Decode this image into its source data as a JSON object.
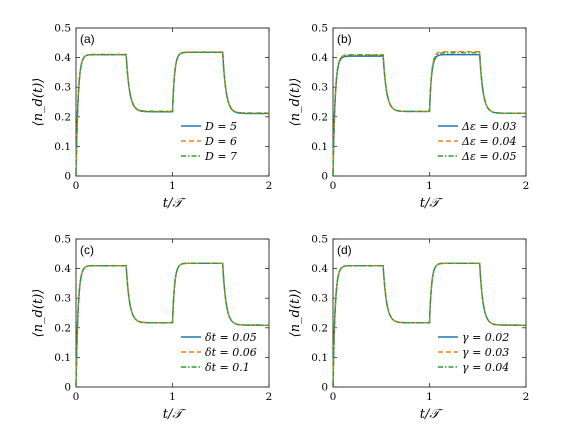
{
  "chart_data": [
    {
      "type": "line",
      "panel_label": "(a)",
      "xlabel": "t/𝒯",
      "ylabel": "⟨n_d(t)⟩",
      "xlim": [
        0,
        2
      ],
      "ylim": [
        0,
        0.5
      ],
      "xticks": [
        "0",
        "1",
        "2"
      ],
      "yticks": [
        "0",
        "0.1",
        "0.2",
        "0.3",
        "0.4",
        "0.5"
      ],
      "legend_position": "lower-right",
      "series": [
        {
          "name": "D = 5",
          "color": "#1f77b4",
          "style": "solid",
          "plateau1": 0.41,
          "trough": 0.217,
          "plateau2": 0.418,
          "tail": 0.211
        },
        {
          "name": "D = 6",
          "color": "#ff7f0e",
          "style": "dashed",
          "plateau1": 0.411,
          "trough": 0.219,
          "plateau2": 0.419,
          "tail": 0.213
        },
        {
          "name": "D = 7",
          "color": "#2ca02c",
          "style": "dashdot",
          "plateau1": 0.41,
          "trough": 0.218,
          "plateau2": 0.418,
          "tail": 0.212
        }
      ]
    },
    {
      "type": "line",
      "panel_label": "(b)",
      "xlabel": "t/𝒯",
      "ylabel": "⟨n_d(t)⟩",
      "xlim": [
        0,
        2
      ],
      "ylim": [
        0,
        0.5
      ],
      "xticks": [
        "0",
        "1",
        "2"
      ],
      "yticks": [
        "0",
        "0.1",
        "0.2",
        "0.3",
        "0.4",
        "0.5"
      ],
      "legend_position": "lower-right",
      "series": [
        {
          "name": "Δε = 0.03",
          "color": "#1f77b4",
          "style": "solid",
          "plateau1": 0.405,
          "trough": 0.218,
          "plateau2": 0.41,
          "tail": 0.212
        },
        {
          "name": "Δε = 0.04",
          "color": "#ff7f0e",
          "style": "dashed",
          "plateau1": 0.41,
          "trough": 0.218,
          "plateau2": 0.42,
          "tail": 0.212
        },
        {
          "name": "Δε = 0.05",
          "color": "#2ca02c",
          "style": "dashdot",
          "plateau1": 0.408,
          "trough": 0.218,
          "plateau2": 0.416,
          "tail": 0.212
        }
      ]
    },
    {
      "type": "line",
      "panel_label": "(c)",
      "xlabel": "t/𝒯",
      "ylabel": "⟨n_d(t)⟩",
      "xlim": [
        0,
        2
      ],
      "ylim": [
        0,
        0.5
      ],
      "xticks": [
        "0",
        "1",
        "2"
      ],
      "yticks": [
        "0",
        "0.1",
        "0.2",
        "0.3",
        "0.4",
        "0.5"
      ],
      "legend_position": "lower-right",
      "series": [
        {
          "name": "δt = 0.05",
          "color": "#1f77b4",
          "style": "solid",
          "plateau1": 0.41,
          "trough": 0.217,
          "plateau2": 0.418,
          "tail": 0.209
        },
        {
          "name": "δt = 0.06",
          "color": "#ff7f0e",
          "style": "dashed",
          "plateau1": 0.41,
          "trough": 0.217,
          "plateau2": 0.418,
          "tail": 0.209
        },
        {
          "name": "δt = 0.1",
          "color": "#2ca02c",
          "style": "dashdot",
          "plateau1": 0.41,
          "trough": 0.217,
          "plateau2": 0.418,
          "tail": 0.209
        }
      ]
    },
    {
      "type": "line",
      "panel_label": "(d)",
      "xlabel": "t/𝒯",
      "ylabel": "⟨n_d(t)⟩",
      "xlim": [
        0,
        2
      ],
      "ylim": [
        0,
        0.5
      ],
      "xticks": [
        "0",
        "1",
        "2"
      ],
      "yticks": [
        "0",
        "0.1",
        "0.2",
        "0.3",
        "0.4",
        "0.5"
      ],
      "legend_position": "lower-right",
      "series": [
        {
          "name": "γ = 0.02",
          "color": "#1f77b4",
          "style": "solid",
          "plateau1": 0.41,
          "trough": 0.217,
          "plateau2": 0.418,
          "tail": 0.209
        },
        {
          "name": "γ = 0.03",
          "color": "#ff7f0e",
          "style": "dashed",
          "plateau1": 0.41,
          "trough": 0.217,
          "plateau2": 0.418,
          "tail": 0.209
        },
        {
          "name": "γ = 0.04",
          "color": "#2ca02c",
          "style": "dashdot",
          "plateau1": 0.41,
          "trough": 0.217,
          "plateau2": 0.418,
          "tail": 0.209
        }
      ]
    }
  ]
}
